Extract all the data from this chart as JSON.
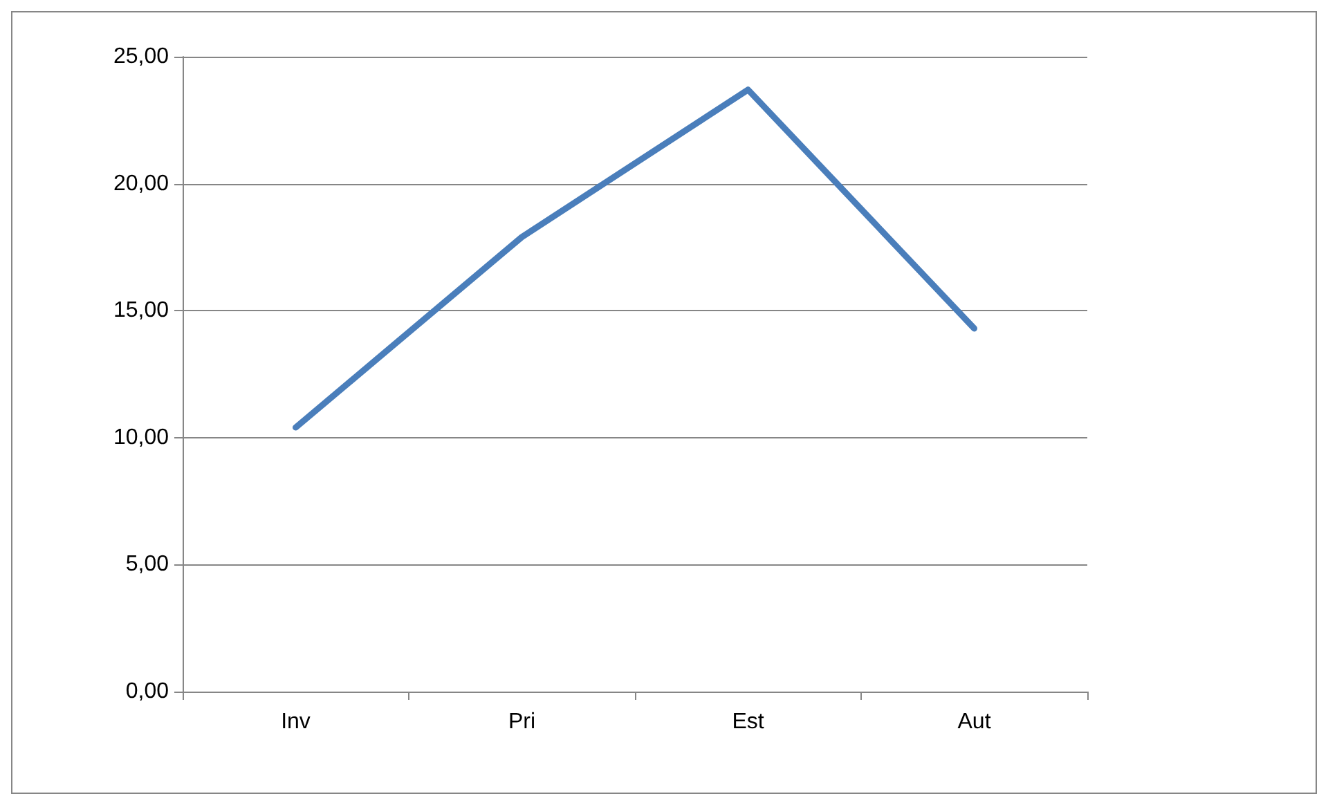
{
  "chart_data": {
    "type": "line",
    "categories": [
      "Inv",
      "Pri",
      "Est",
      "Aut"
    ],
    "series": [
      {
        "color": "#4a7ebb",
        "values": [
          10.4,
          17.9,
          23.7,
          14.3
        ]
      }
    ],
    "ylim": [
      0,
      25
    ],
    "yticks": [
      {
        "value": 0,
        "label": "0,00"
      },
      {
        "value": 5,
        "label": "5,00"
      },
      {
        "value": 10,
        "label": "10,00"
      },
      {
        "value": 15,
        "label": "15,00"
      },
      {
        "value": 20,
        "label": "20,00"
      },
      {
        "value": 25,
        "label": "25,00"
      }
    ],
    "grid": "y",
    "marker": "none",
    "line_style": "solid"
  }
}
